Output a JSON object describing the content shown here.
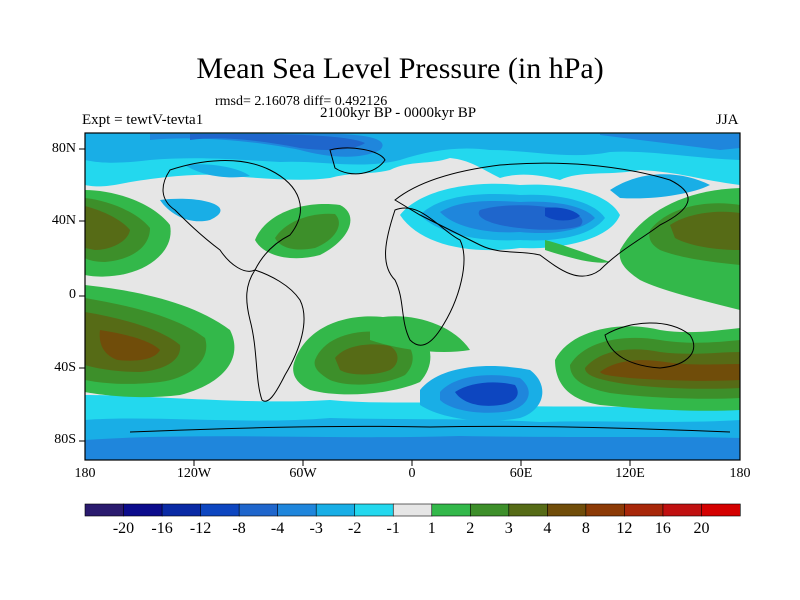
{
  "title": "Mean Sea Level Pressure (in hPa)",
  "stats": "rmsd= 2.16078 diff= 0.492126",
  "experiment": "Expt = tewtV-tevta1",
  "period": "2100kyr BP - 0000kyr BP",
  "season": "JJA",
  "lat_labels": [
    "80N",
    "40N",
    "0",
    "40S",
    "80S"
  ],
  "lon_labels": [
    "180",
    "120W",
    "60W",
    "0",
    "60E",
    "120E",
    "180"
  ],
  "colorbar": {
    "labels": [
      "-20",
      "-16",
      "-12",
      "-8",
      "-4",
      "-3",
      "-2",
      "-1",
      "1",
      "2",
      "3",
      "4",
      "8",
      "12",
      "16",
      "20"
    ],
    "colors": [
      "#2a1a6e",
      "#0c0c8c",
      "#0a2aa5",
      "#0d46c0",
      "#1f66cc",
      "#1f86dc",
      "#19aee6",
      "#23d8ee",
      "#e6e6e6",
      "#33b84a",
      "#3d8f2a",
      "#566b16",
      "#704d0a",
      "#8c3a06",
      "#a8270a",
      "#c01010",
      "#d40000"
    ]
  }
}
